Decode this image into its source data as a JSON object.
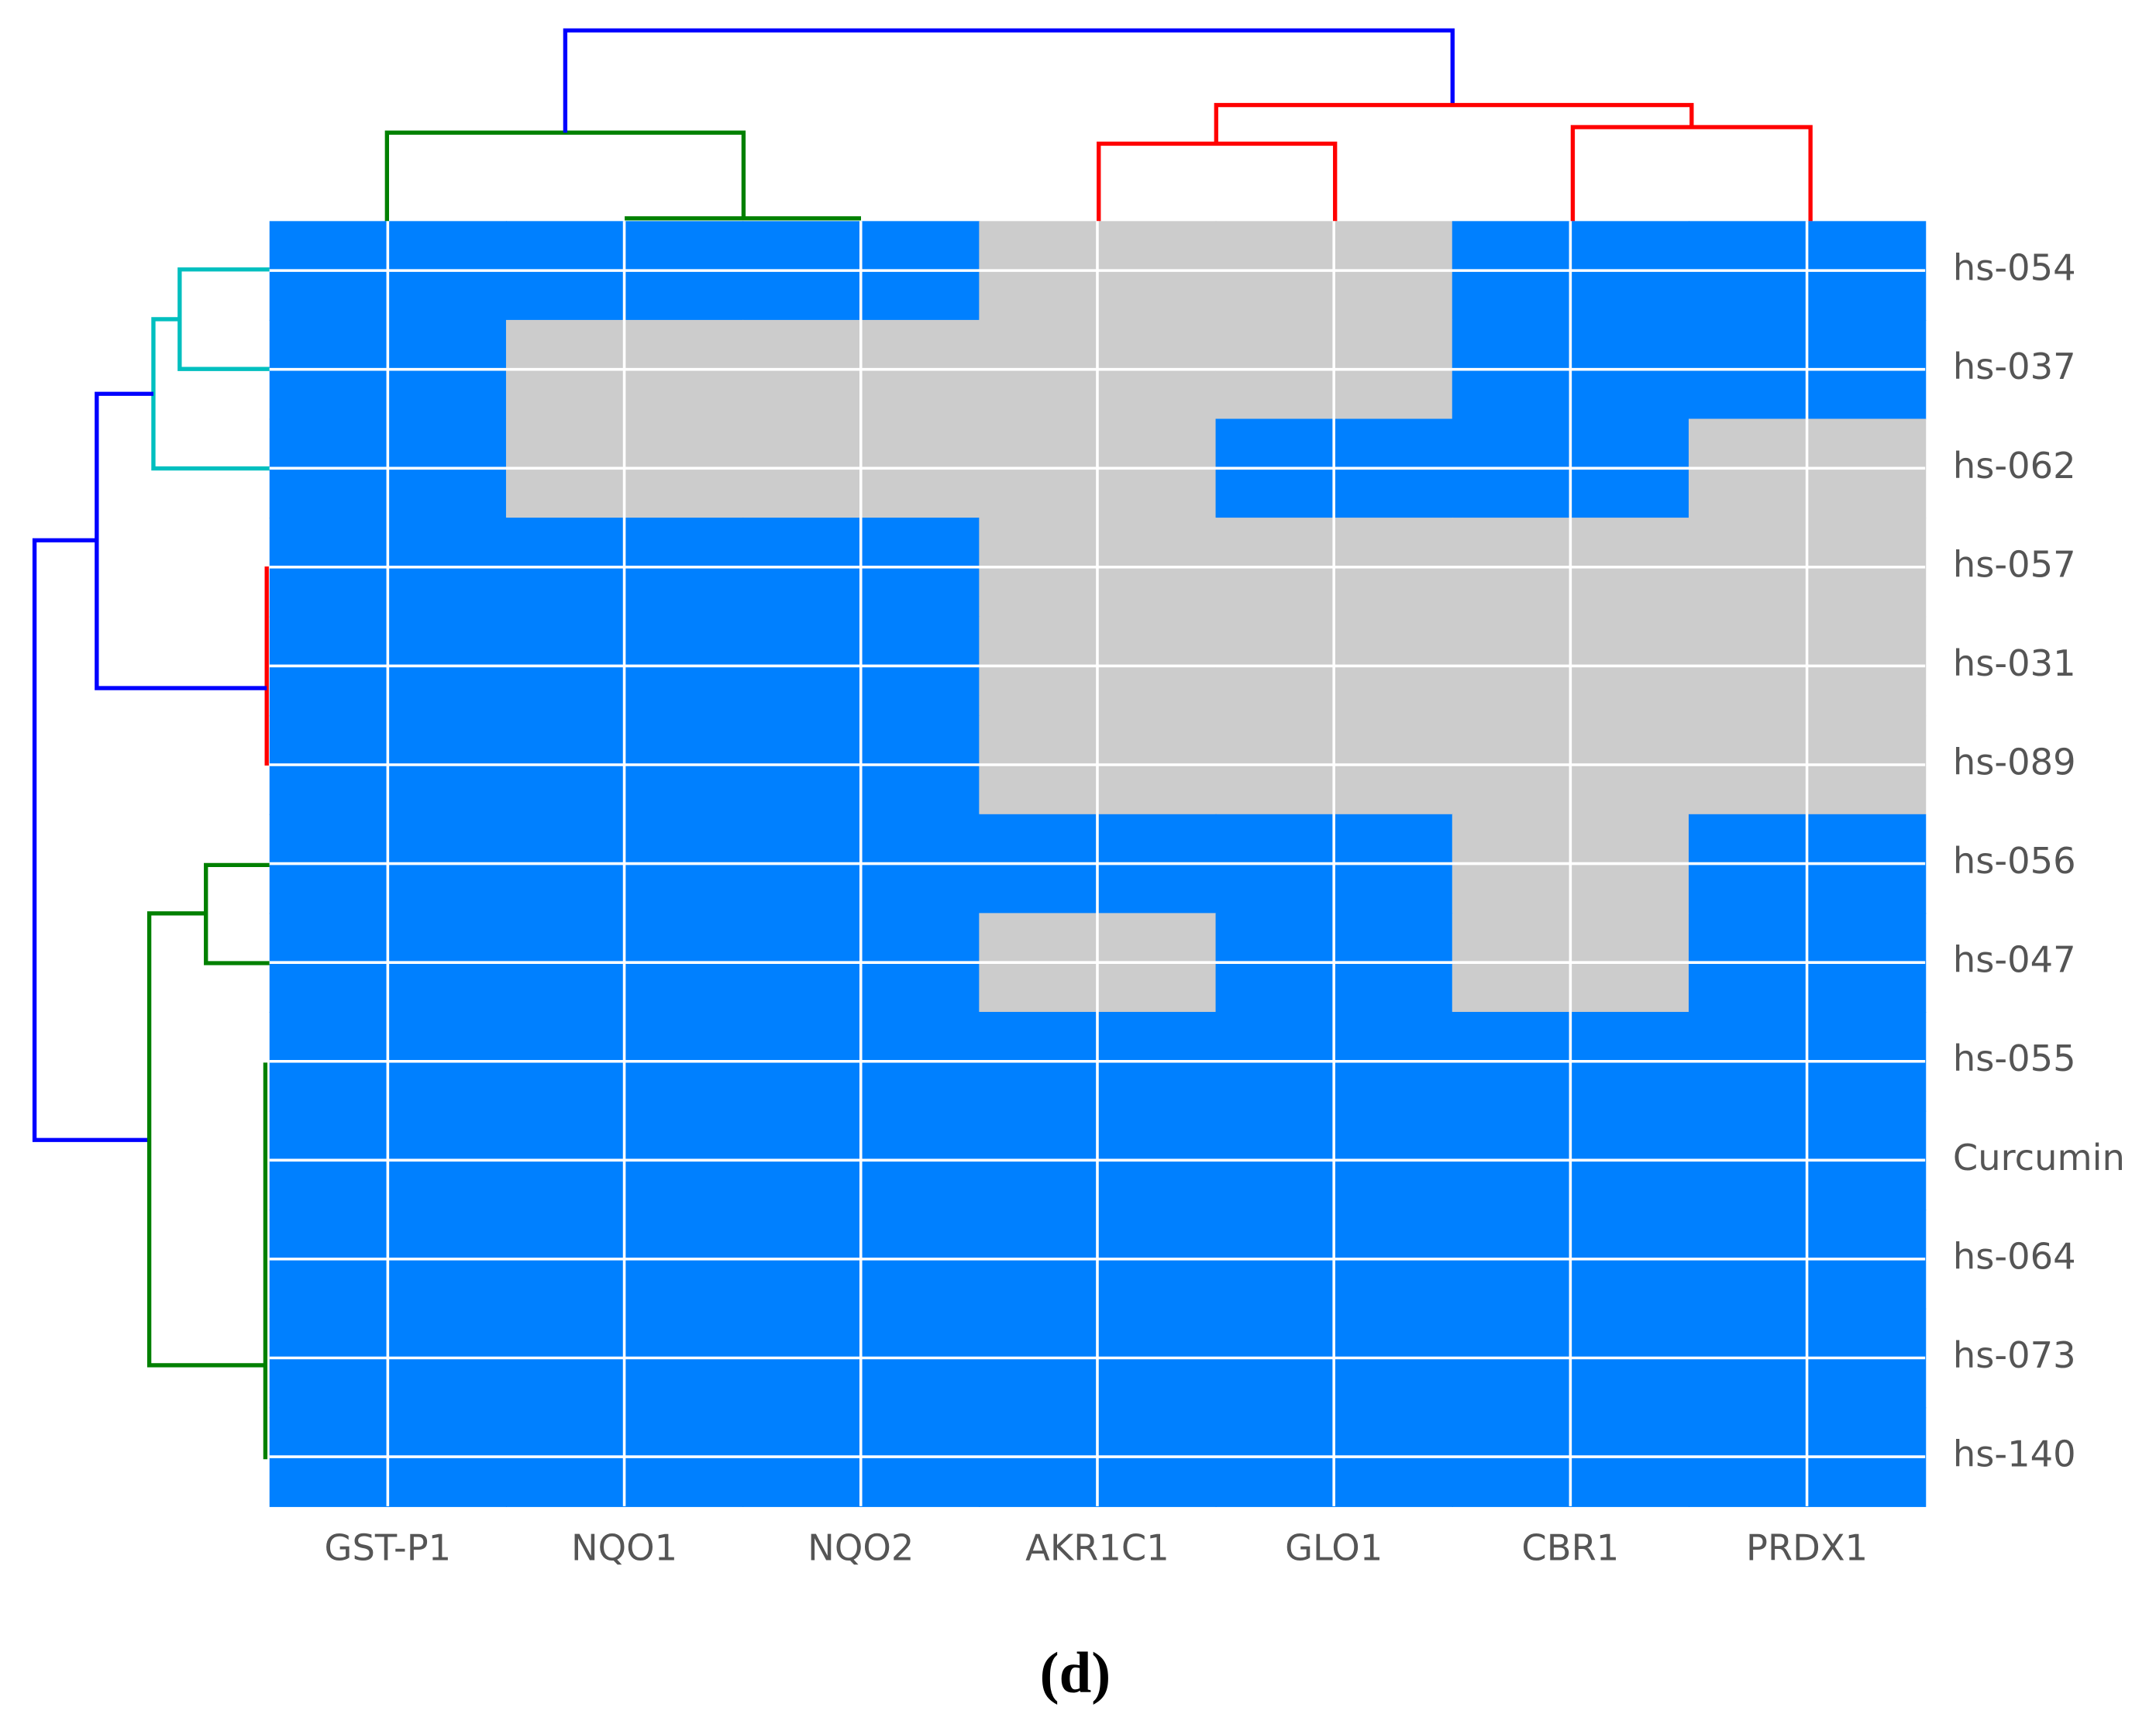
{
  "chart_data": {
    "type": "heatmap",
    "columns": [
      "GST-P1",
      "NQO1",
      "NQO2",
      "AKR1C1",
      "GLO1",
      "CBR1",
      "PRDX1"
    ],
    "rows": [
      "hs-054",
      "hs-037",
      "hs-062",
      "hs-057",
      "hs-031",
      "hs-089",
      "hs-056",
      "hs-047",
      "hs-055",
      "Curcumin",
      "hs-064",
      "hs-073",
      "hs-140"
    ],
    "values": [
      [
        1,
        1,
        1,
        0,
        0,
        1,
        1
      ],
      [
        1,
        0,
        0,
        0,
        0,
        1,
        1
      ],
      [
        1,
        0,
        0,
        0,
        1,
        1,
        0
      ],
      [
        1,
        1,
        1,
        0,
        0,
        0,
        0
      ],
      [
        1,
        1,
        1,
        0,
        0,
        0,
        0
      ],
      [
        1,
        1,
        1,
        0,
        0,
        0,
        0
      ],
      [
        1,
        1,
        1,
        1,
        1,
        0,
        1
      ],
      [
        1,
        1,
        1,
        0,
        1,
        0,
        1
      ],
      [
        1,
        1,
        1,
        1,
        1,
        1,
        1
      ],
      [
        1,
        1,
        1,
        1,
        1,
        1,
        1
      ],
      [
        1,
        1,
        1,
        1,
        1,
        1,
        1
      ],
      [
        1,
        1,
        1,
        1,
        1,
        1,
        1
      ],
      [
        1,
        1,
        1,
        1,
        1,
        1,
        1
      ]
    ],
    "colors": [
      "#cccccc",
      "#0080ff"
    ],
    "grid": true,
    "caption": "(d)"
  }
}
